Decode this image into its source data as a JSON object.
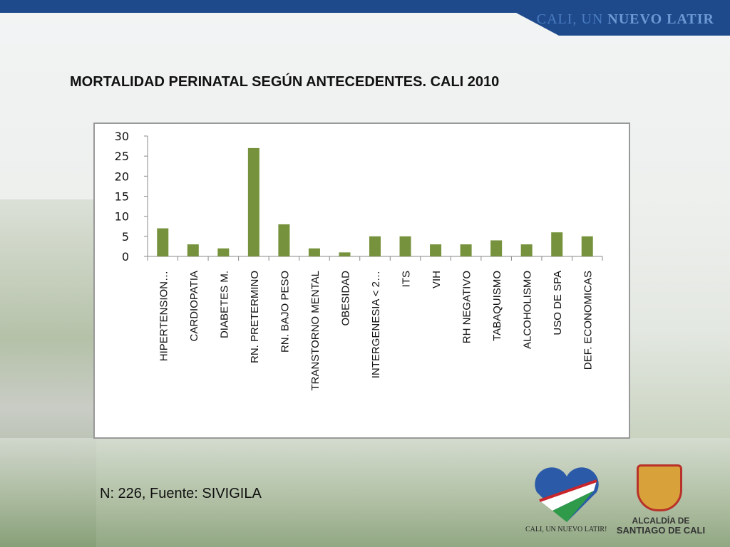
{
  "header": {
    "tagline_light": "CALI, UN",
    "tagline_bold": "NUEVO LATIR"
  },
  "title": "MORTALIDAD PERINATAL SEGÚN ANTECEDENTES. CALI 2010",
  "note": "N: 226, Fuente: SIVIGILA",
  "logos": {
    "heart_caption": "CALI, UN NUEVO LATIR!",
    "alcaldia_line1": "ALCALDÍA DE",
    "alcaldia_line2": "SANTIAGO DE CALI"
  },
  "chart_data": {
    "type": "bar",
    "categories": [
      "HIPERTENSION…",
      "CARDIOPATIA",
      "DIABETES M.",
      "RN. PRETERMINO",
      "RN. BAJO PESO",
      "TRANSTORNO MENTAL",
      "OBESIDAD",
      "INTERGENESIA < 2…",
      "ITS",
      "VIH",
      "RH NEGATIVO",
      "TABAQUISMO",
      "ALCOHOLISMO",
      "USO DE SPA",
      "DEF. ECONOMICAS"
    ],
    "values": [
      7,
      3,
      2,
      27,
      8,
      2,
      1,
      5,
      5,
      3,
      3,
      4,
      3,
      6,
      5
    ],
    "ylim": [
      0,
      30
    ],
    "yticks": [
      0,
      5,
      10,
      15,
      20,
      25,
      30
    ],
    "grid": false,
    "bar_color": "#76923c"
  }
}
